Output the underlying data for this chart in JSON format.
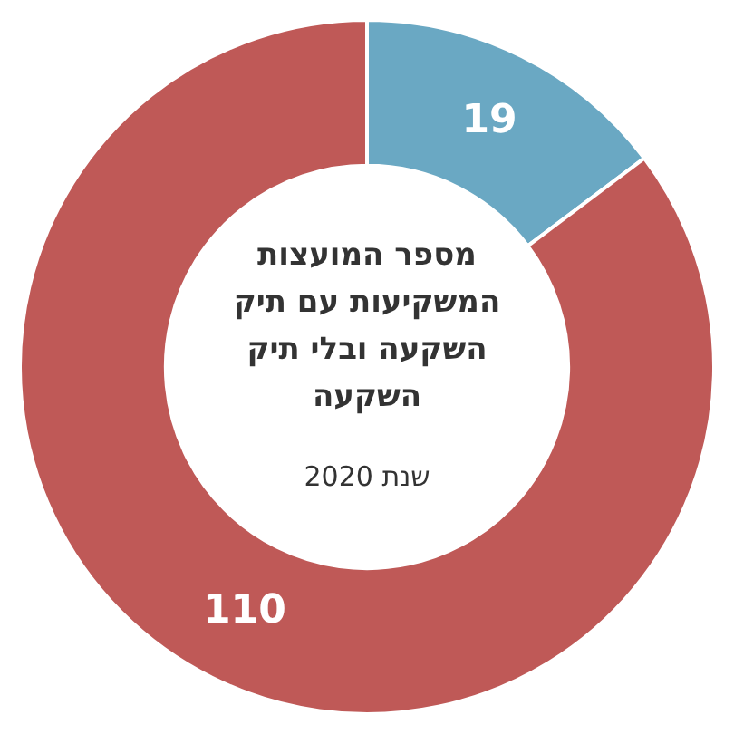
{
  "chart_data": {
    "type": "donut",
    "title": "מספר המועצות המשקיעות עם תיק השקעה ובלי תיק השקעה",
    "subtitle": "שנת 2020",
    "categories": [
      null,
      null
    ],
    "values": [
      19,
      110
    ],
    "colors": [
      "#6aa8c3",
      "#bf5957"
    ],
    "data_labels": true,
    "legend": false
  }
}
